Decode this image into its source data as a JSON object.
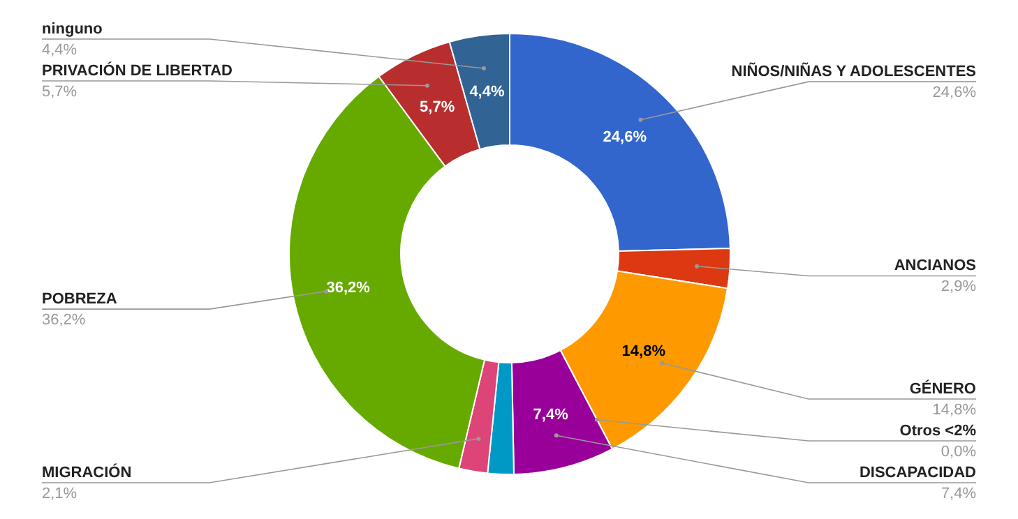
{
  "chart_data": {
    "type": "donut",
    "categories": [
      "NIÑOS/NIÑAS Y ADOLESCENTES",
      "ANCIANOS",
      "GÉNERO",
      "Otros <2%",
      "DISCAPACIDAD",
      null,
      "MIGRACIÓN",
      "POBREZA",
      "PRIVACIÓN DE LIBERTAD",
      "ninguno"
    ],
    "values": [
      24.6,
      2.9,
      14.8,
      0.0,
      7.4,
      1.9,
      2.1,
      36.2,
      5.7,
      4.4
    ],
    "value_labels": [
      "24,6%",
      "2,9%",
      "14,8%",
      "0,0%",
      "7,4%",
      null,
      "2,1%",
      "36,2%",
      "5,7%",
      "4,4%"
    ],
    "colors": [
      "#3366cc",
      "#dc3912",
      "#ff9900",
      "#aaaa11",
      "#990099",
      "#0099c6",
      "#dd4477",
      "#66aa00",
      "#b82e2e",
      "#316395"
    ]
  }
}
